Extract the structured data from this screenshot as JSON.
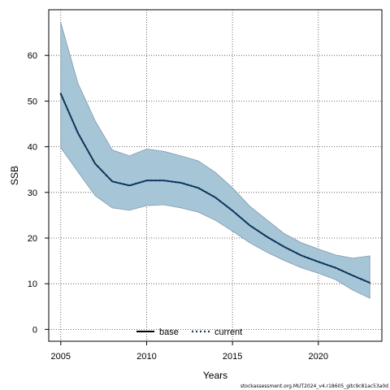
{
  "chart_data": {
    "type": "line",
    "title": "",
    "xlabel": "Years",
    "ylabel": "SSB",
    "xlim": [
      2004.3,
      2023.7
    ],
    "ylim": [
      -2.6,
      70.0
    ],
    "x_ticks": [
      2005,
      2010,
      2015,
      2020
    ],
    "y_ticks": [
      0,
      10,
      20,
      30,
      40,
      50,
      60
    ],
    "grid": true,
    "legend_position": "bottom-center",
    "x": [
      2005,
      2006,
      2007,
      2008,
      2009,
      2010,
      2011,
      2012,
      2013,
      2014,
      2015,
      2016,
      2017,
      2018,
      2019,
      2020,
      2021,
      2022,
      2023
    ],
    "band": {
      "lower": [
        39.8,
        34.5,
        29.3,
        26.6,
        26.1,
        27.1,
        27.3,
        26.6,
        25.7,
        23.9,
        21.5,
        19.0,
        16.9,
        15.1,
        13.5,
        12.3,
        10.9,
        8.6,
        6.8
      ],
      "upper": [
        67.2,
        53.9,
        45.7,
        39.3,
        38.0,
        39.5,
        39.0,
        38.0,
        36.9,
        34.4,
        31.0,
        27.0,
        24.0,
        21.0,
        19.0,
        17.6,
        16.3,
        15.6,
        16.1
      ],
      "color": "#a6c6d8"
    },
    "series": [
      {
        "name": "base",
        "values": [
          51.6,
          43.0,
          36.3,
          32.4,
          31.5,
          32.6,
          32.6,
          32.1,
          31.0,
          28.9,
          26.0,
          22.8,
          20.3,
          18.1,
          16.2,
          14.8,
          13.5,
          11.8,
          10.2
        ],
        "color": "#000000",
        "dash": "solid"
      },
      {
        "name": "current",
        "values": [
          51.6,
          43.0,
          36.3,
          32.4,
          31.5,
          32.6,
          32.6,
          32.1,
          31.0,
          28.9,
          26.0,
          22.8,
          20.3,
          18.1,
          16.2,
          14.8,
          13.5,
          11.8,
          10.2
        ],
        "color": "#0d3b66",
        "dash": "dotted"
      }
    ]
  },
  "footer": "stockassessment.org.MUT2024_v4.r18605_gitc9c81ac53a0d"
}
